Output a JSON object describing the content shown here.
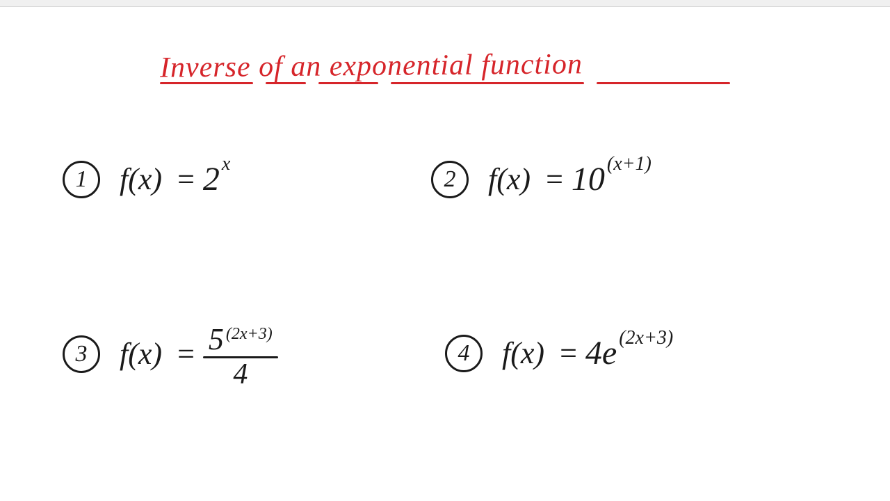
{
  "title": {
    "text": "Inverse of an exponential function",
    "color": "#d6252a",
    "underline_color": "#d6252a",
    "fontsize": 42,
    "underline_segments": [
      140,
      60,
      90,
      290,
      200
    ]
  },
  "text_color": "#1a1a1a",
  "background_color": "#ffffff",
  "circle_border_width": 3.5,
  "problems": [
    {
      "num": "1",
      "fx": "f(x)",
      "base": "2",
      "exponent": "x",
      "has_fraction": false,
      "coef": ""
    },
    {
      "num": "2",
      "fx": "f(x)",
      "base": "10",
      "exponent": "(x+1)",
      "has_fraction": false,
      "coef": ""
    },
    {
      "num": "3",
      "fx": "f(x)",
      "base": "5",
      "exponent": "(2x+3)",
      "has_fraction": true,
      "denom": "4",
      "coef": ""
    },
    {
      "num": "4",
      "fx": "f(x)",
      "base": "e",
      "exponent": "(2x+3)",
      "has_fraction": false,
      "coef": "4"
    }
  ]
}
